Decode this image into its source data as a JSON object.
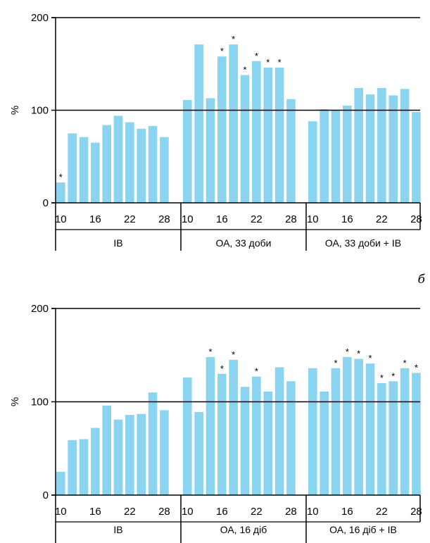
{
  "colors": {
    "bar": "#8ad4f0",
    "axis": "#000000"
  },
  "chart_data": [
    {
      "type": "bar",
      "title": "",
      "ylabel": "%",
      "ylim": [
        0,
        200
      ],
      "yticks": [
        0,
        100,
        200
      ],
      "reference_line": 100,
      "groups": [
        {
          "label": "ІВ",
          "x_tick_labels": [
            "10",
            "16",
            "22",
            "28"
          ],
          "values": [
            22,
            75,
            71,
            65,
            84,
            94,
            87,
            80,
            83,
            71
          ],
          "significant": [
            true,
            false,
            false,
            false,
            false,
            false,
            false,
            false,
            false,
            false
          ]
        },
        {
          "label": "ОА, 33 доби",
          "x_tick_labels": [
            "10",
            "16",
            "22",
            "28"
          ],
          "values": [
            111,
            171,
            113,
            158,
            171,
            138,
            153,
            146,
            146,
            112
          ],
          "significant": [
            false,
            false,
            false,
            true,
            true,
            true,
            true,
            true,
            true,
            false
          ]
        },
        {
          "label": "ОА, 33 доби + ІВ",
          "x_tick_labels": [
            "10",
            "16",
            "22",
            "28"
          ],
          "values": [
            88,
            101,
            100,
            105,
            124,
            117,
            124,
            116,
            123,
            98
          ],
          "significant": [
            false,
            false,
            false,
            false,
            false,
            false,
            false,
            false,
            false,
            false
          ]
        }
      ]
    },
    {
      "type": "bar",
      "panel_label": "б",
      "title": "",
      "ylabel": "%",
      "ylim": [
        0,
        200
      ],
      "yticks": [
        0,
        100,
        200
      ],
      "reference_line": 100,
      "groups": [
        {
          "label": "ІВ",
          "x_tick_labels": [
            "10",
            "16",
            "22",
            "28"
          ],
          "values": [
            25,
            59,
            60,
            72,
            96,
            81,
            86,
            87,
            110,
            91
          ],
          "significant": [
            false,
            false,
            false,
            false,
            false,
            false,
            false,
            false,
            false,
            false
          ]
        },
        {
          "label": "ОА, 16 діб",
          "x_tick_labels": [
            "10",
            "16",
            "22",
            "28"
          ],
          "values": [
            126,
            89,
            148,
            130,
            145,
            116,
            127,
            111,
            137,
            122
          ],
          "significant": [
            false,
            false,
            true,
            true,
            true,
            false,
            true,
            false,
            false,
            false
          ]
        },
        {
          "label": "ОА, 16 діб + ІВ",
          "x_tick_labels": [
            "10",
            "16",
            "22",
            "28"
          ],
          "values": [
            136,
            111,
            136,
            148,
            146,
            141,
            120,
            122,
            136,
            131
          ],
          "significant": [
            false,
            false,
            true,
            true,
            true,
            true,
            true,
            true,
            true,
            true
          ]
        }
      ]
    }
  ]
}
